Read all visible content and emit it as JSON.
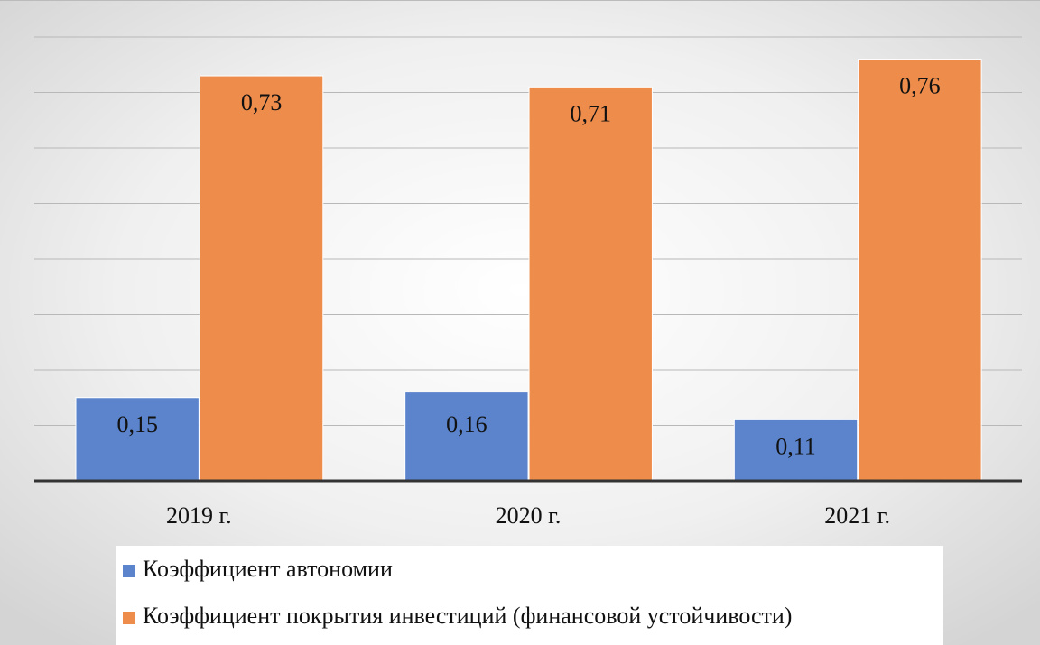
{
  "chart_data": {
    "type": "bar",
    "categories": [
      "2019 г.",
      "2020 г.",
      "2021 г."
    ],
    "series": [
      {
        "name": "Коэффициент автономии",
        "color": "#5b84cc",
        "values": [
          0.15,
          0.16,
          0.11
        ],
        "value_labels": [
          "0,15",
          "0,16",
          "0,11"
        ]
      },
      {
        "name": "Коэффициент покрытия инвестиций (финансовой устойчивости)",
        "color": "#ee8c4c",
        "values": [
          0.73,
          0.71,
          0.76
        ],
        "value_labels": [
          "0,73",
          "0,71",
          "0,76"
        ]
      }
    ],
    "ylim": [
      0,
      0.8
    ],
    "yticks": [
      0,
      0.1,
      0.2,
      0.3,
      0.4,
      0.5,
      0.6,
      0.7,
      0.8
    ],
    "grid": true
  }
}
